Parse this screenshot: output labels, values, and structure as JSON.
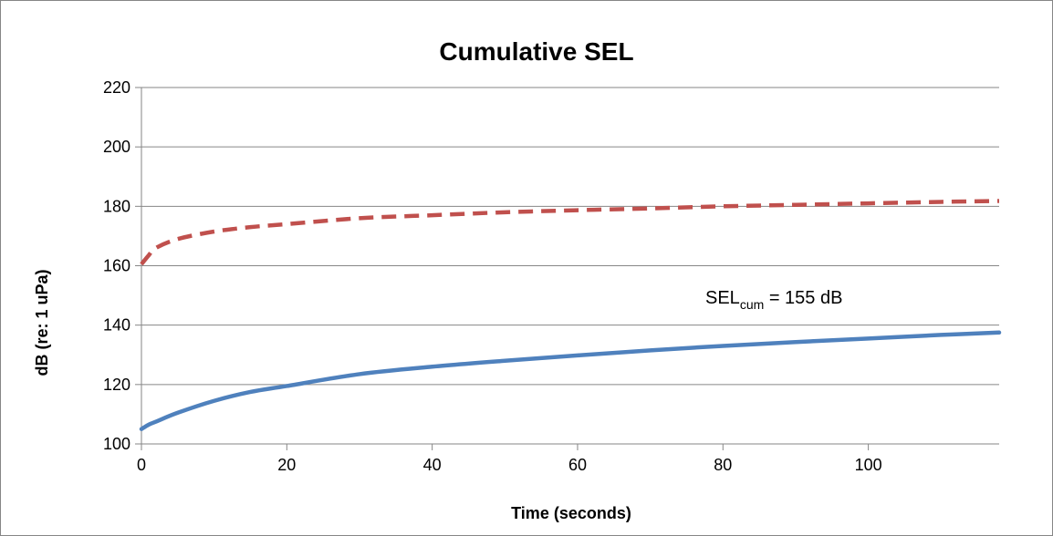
{
  "chart_data": {
    "type": "line",
    "title": "Cumulative SEL",
    "xlabel": "Time (seconds)",
    "ylabel": "dB (re: 1 uPa)",
    "xlim": [
      0,
      118
    ],
    "ylim": [
      100,
      220
    ],
    "x_ticks": [
      0,
      20,
      40,
      60,
      80,
      100
    ],
    "y_ticks": [
      100,
      120,
      140,
      160,
      180,
      200,
      220
    ],
    "grid": true,
    "legend": "none",
    "annotation": {
      "main": "SEL",
      "subscript": "cum",
      "rest": " = 155 dB"
    },
    "series": [
      {
        "style": "dashed",
        "color": "#C0504D",
        "x": [
          0,
          1,
          2,
          5,
          10,
          15,
          20,
          30,
          40,
          50,
          60,
          70,
          80,
          90,
          100,
          110,
          118
        ],
        "y": [
          160.5,
          163.5,
          166,
          169,
          171.5,
          173,
          174,
          176,
          177,
          178,
          178.7,
          179.3,
          180,
          180.5,
          181,
          181.5,
          181.8
        ]
      },
      {
        "style": "solid",
        "color": "#4F81BD",
        "x": [
          0,
          1,
          2,
          5,
          10,
          15,
          20,
          30,
          40,
          50,
          60,
          70,
          80,
          90,
          100,
          110,
          118
        ],
        "y": [
          105,
          106.5,
          107.5,
          110.5,
          114.5,
          117.5,
          119.5,
          123.5,
          126,
          128,
          129.8,
          131.5,
          133,
          134.3,
          135.5,
          136.7,
          137.5
        ]
      }
    ]
  }
}
